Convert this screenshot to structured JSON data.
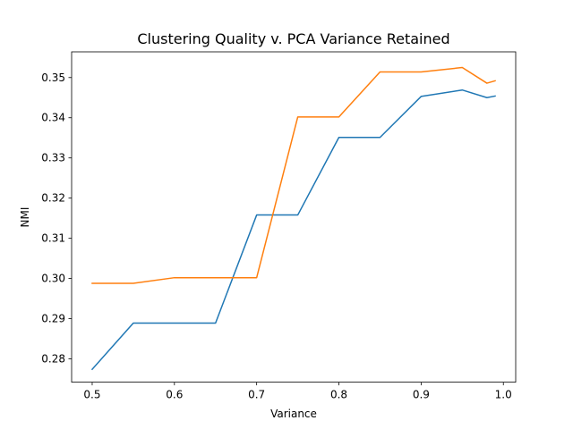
{
  "chart_data": {
    "type": "line",
    "title": "Clustering Quality v. PCA Variance Retained",
    "xlabel": "Variance",
    "ylabel": "NMI",
    "xlim": [
      0.475,
      1.015
    ],
    "ylim": [
      0.2742,
      0.3564
    ],
    "xticks": [
      0.5,
      0.6,
      0.7,
      0.8,
      0.9,
      1.0
    ],
    "xtick_labels": [
      "0.5",
      "0.6",
      "0.7",
      "0.8",
      "0.9",
      "1.0"
    ],
    "yticks": [
      0.28,
      0.29,
      0.3,
      0.31,
      0.32,
      0.33,
      0.34,
      0.35
    ],
    "ytick_labels": [
      "0.28",
      "0.29",
      "0.30",
      "0.31",
      "0.32",
      "0.33",
      "0.34",
      "0.35"
    ],
    "grid": false,
    "x": [
      0.5,
      0.55,
      0.6,
      0.65,
      0.7,
      0.75,
      0.8,
      0.85,
      0.9,
      0.95,
      0.98,
      0.99
    ],
    "series": [
      {
        "color": "#1f77b4",
        "values": [
          0.2774,
          0.2889,
          0.2889,
          0.2889,
          0.3158,
          0.3158,
          0.3351,
          0.3351,
          0.3453,
          0.3469,
          0.345,
          0.3454
        ]
      },
      {
        "color": "#ff7f0e",
        "values": [
          0.2988,
          0.2988,
          0.3002,
          0.3002,
          0.3002,
          0.3402,
          0.3402,
          0.3514,
          0.3514,
          0.3525,
          0.3486,
          0.3492
        ]
      }
    ]
  }
}
